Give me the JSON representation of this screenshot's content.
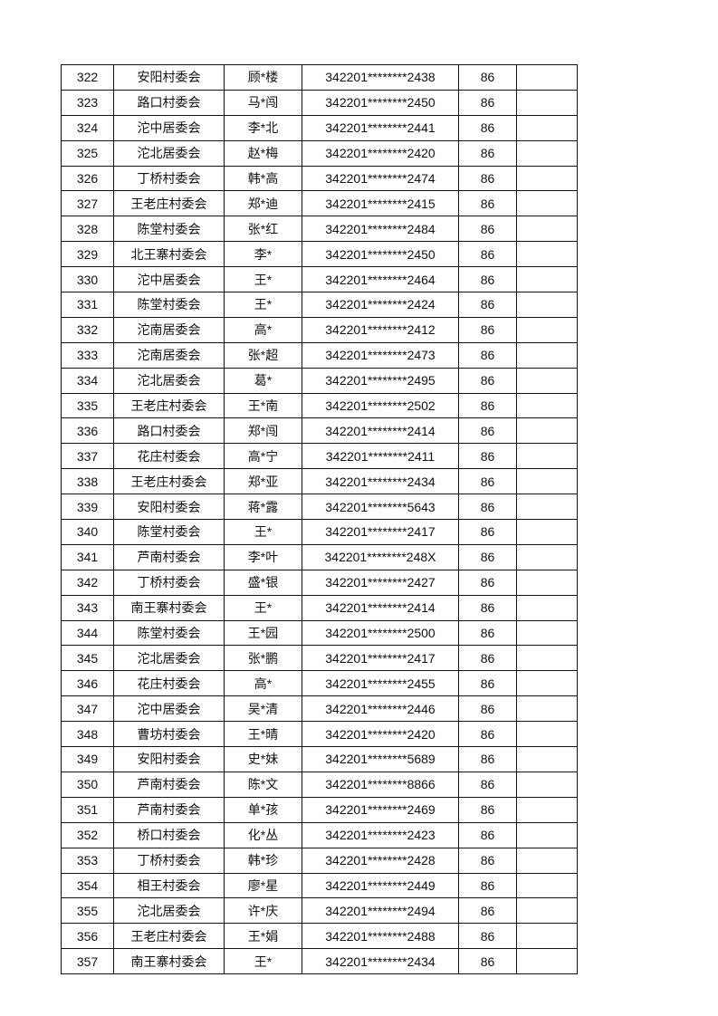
{
  "rows": [
    [
      "322",
      "安阳村委会",
      "顾*楼",
      "342201********2438",
      "86",
      ""
    ],
    [
      "323",
      "路口村委会",
      "马*闯",
      "342201********2450",
      "86",
      ""
    ],
    [
      "324",
      "沱中居委会",
      "李*北",
      "342201********2441",
      "86",
      ""
    ],
    [
      "325",
      "沱北居委会",
      "赵*梅",
      "342201********2420",
      "86",
      ""
    ],
    [
      "326",
      "丁桥村委会",
      "韩*高",
      "342201********2474",
      "86",
      ""
    ],
    [
      "327",
      "王老庄村委会",
      "郑*迪",
      "342201********2415",
      "86",
      ""
    ],
    [
      "328",
      "陈堂村委会",
      "张*红",
      "342201********2484",
      "86",
      ""
    ],
    [
      "329",
      "北王寨村委会",
      "李*",
      "342201********2450",
      "86",
      ""
    ],
    [
      "330",
      "沱中居委会",
      "王*",
      "342201********2464",
      "86",
      ""
    ],
    [
      "331",
      "陈堂村委会",
      "王*",
      "342201********2424",
      "86",
      ""
    ],
    [
      "332",
      "沱南居委会",
      "高*",
      "342201********2412",
      "86",
      ""
    ],
    [
      "333",
      "沱南居委会",
      "张*超",
      "342201********2473",
      "86",
      ""
    ],
    [
      "334",
      "沱北居委会",
      "葛*",
      "342201********2495",
      "86",
      ""
    ],
    [
      "335",
      "王老庄村委会",
      "王*南",
      "342201********2502",
      "86",
      ""
    ],
    [
      "336",
      "路口村委会",
      "郑*闯",
      "342201********2414",
      "86",
      ""
    ],
    [
      "337",
      "花庄村委会",
      "高*宁",
      "342201********2411",
      "86",
      ""
    ],
    [
      "338",
      "王老庄村委会",
      "郑*亚",
      "342201********2434",
      "86",
      ""
    ],
    [
      "339",
      "安阳村委会",
      "蒋*露",
      "342201********5643",
      "86",
      ""
    ],
    [
      "340",
      "陈堂村委会",
      "王*",
      "342201********2417",
      "86",
      ""
    ],
    [
      "341",
      "芦南村委会",
      "李*叶",
      "342201********248X",
      "86",
      ""
    ],
    [
      "342",
      "丁桥村委会",
      "盛*银",
      "342201********2427",
      "86",
      ""
    ],
    [
      "343",
      "南王寨村委会",
      "王*",
      "342201********2414",
      "86",
      ""
    ],
    [
      "344",
      "陈堂村委会",
      "王*园",
      "342201********2500",
      "86",
      ""
    ],
    [
      "345",
      "沱北居委会",
      "张*鹏",
      "342201********2417",
      "86",
      ""
    ],
    [
      "346",
      "花庄村委会",
      "高*",
      "342201********2455",
      "86",
      ""
    ],
    [
      "347",
      "沱中居委会",
      "吴*清",
      "342201********2446",
      "86",
      ""
    ],
    [
      "348",
      "曹坊村委会",
      "王*晴",
      "342201********2420",
      "86",
      ""
    ],
    [
      "349",
      "安阳村委会",
      "史*妹",
      "342201********5689",
      "86",
      ""
    ],
    [
      "350",
      "芦南村委会",
      "陈*文",
      "342201********8866",
      "86",
      ""
    ],
    [
      "351",
      "芦南村委会",
      "单*孩",
      "342201********2469",
      "86",
      ""
    ],
    [
      "352",
      "桥口村委会",
      "化*丛",
      "342201********2423",
      "86",
      ""
    ],
    [
      "353",
      "丁桥村委会",
      "韩*珍",
      "342201********2428",
      "86",
      ""
    ],
    [
      "354",
      "相王村委会",
      "廖*星",
      "342201********2449",
      "86",
      ""
    ],
    [
      "355",
      "沱北居委会",
      "许*庆",
      "342201********2494",
      "86",
      ""
    ],
    [
      "356",
      "王老庄村委会",
      "王*娟",
      "342201********2488",
      "86",
      ""
    ],
    [
      "357",
      "南王寨村委会",
      "王*",
      "342201********2434",
      "86",
      ""
    ]
  ]
}
